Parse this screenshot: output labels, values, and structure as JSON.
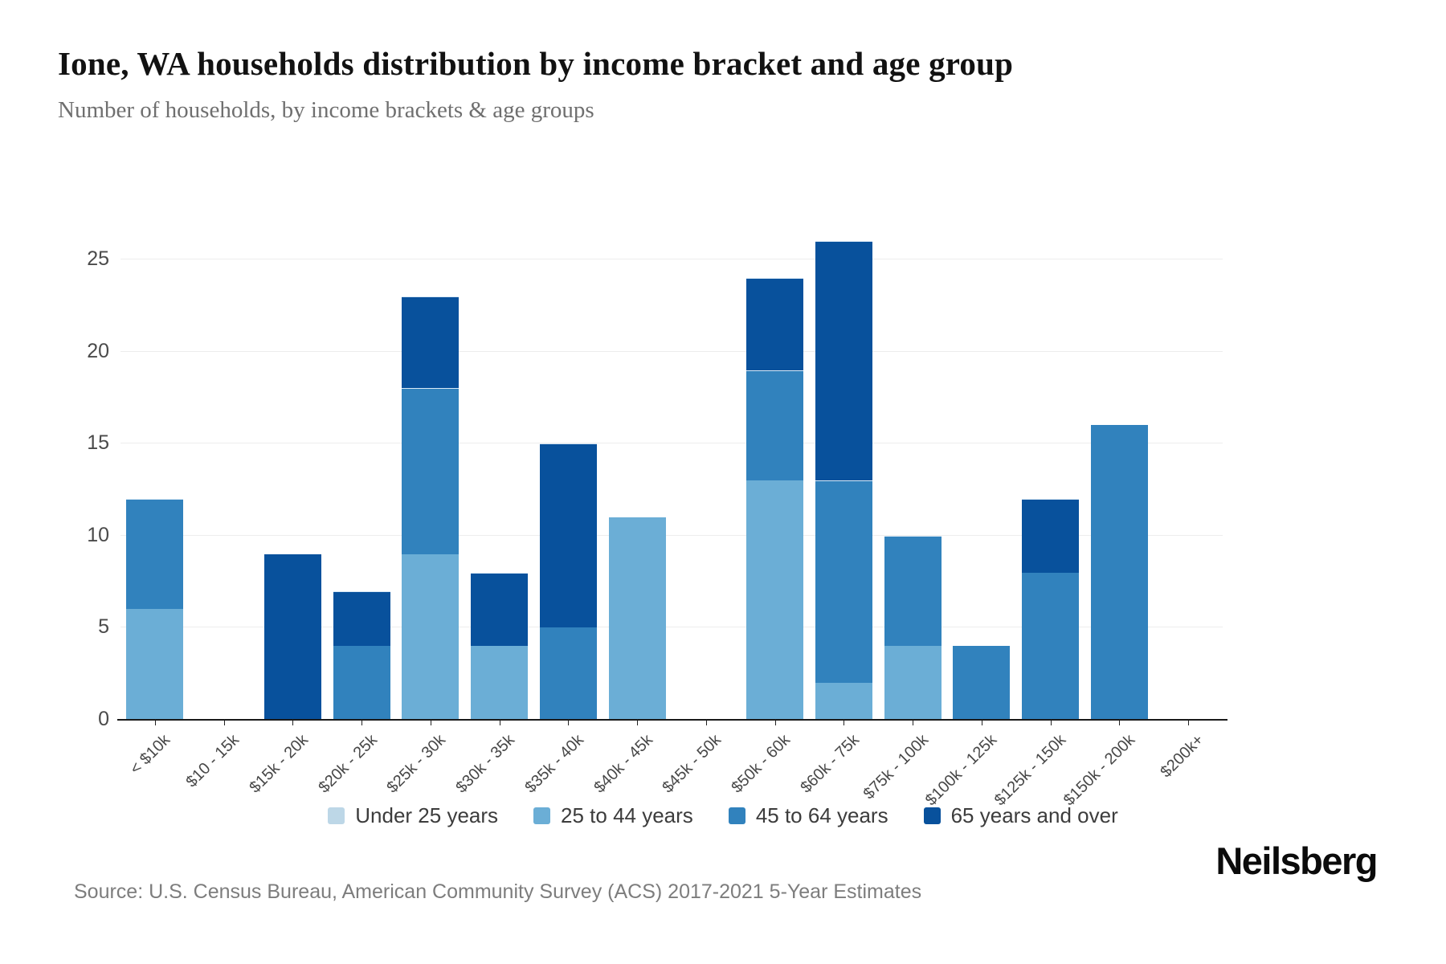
{
  "header": {
    "title": "Ione, WA households distribution by income bracket and age group",
    "subtitle": "Number of households, by income brackets & age groups"
  },
  "footer": {
    "source": "Source: U.S. Census Bureau, American Community Survey (ACS) 2017-2021 5-Year Estimates",
    "brand": "Neilsberg"
  },
  "chart_data": {
    "type": "bar",
    "stacked": true,
    "title": "Ione, WA households distribution by income bracket and age group",
    "xlabel": "",
    "ylabel": "",
    "ylim": [
      0,
      26
    ],
    "yticks": [
      0,
      5,
      10,
      15,
      20,
      25
    ],
    "grid": true,
    "legend_position": "bottom",
    "categories": [
      "< $10k",
      "$10 - 15k",
      "$15k - 20k",
      "$20k - 25k",
      "$25k - 30k",
      "$30k - 35k",
      "$35k - 40k",
      "$40k - 45k",
      "$45k - 50k",
      "$50k - 60k",
      "$60k - 75k",
      "$75k - 100k",
      "$100k - 125k",
      "$125k - 150k",
      "$150k - 200k",
      "$200k+"
    ],
    "series": [
      {
        "name": "Under 25 years",
        "color": "#bdd7e7",
        "values": [
          0,
          0,
          0,
          0,
          0,
          0,
          0,
          0,
          0,
          0,
          0,
          0,
          0,
          0,
          0,
          0
        ]
      },
      {
        "name": "25 to 44 years",
        "color": "#6baed6",
        "values": [
          6,
          0,
          0,
          0,
          9,
          4,
          0,
          11,
          0,
          13,
          2,
          4,
          0,
          0,
          0,
          0
        ]
      },
      {
        "name": "45 to 64 years",
        "color": "#3182bd",
        "values": [
          6,
          0,
          0,
          4,
          9,
          0,
          5,
          0,
          0,
          6,
          11,
          6,
          4,
          8,
          16,
          0
        ]
      },
      {
        "name": "65 years and over",
        "color": "#08519c",
        "values": [
          0,
          0,
          9,
          3,
          5,
          4,
          10,
          0,
          0,
          5,
          13,
          0,
          0,
          4,
          0,
          0
        ]
      }
    ],
    "totals": [
      12,
      0,
      9,
      7,
      23,
      8,
      15,
      11,
      0,
      24,
      26,
      10,
      4,
      12,
      16,
      0
    ]
  }
}
